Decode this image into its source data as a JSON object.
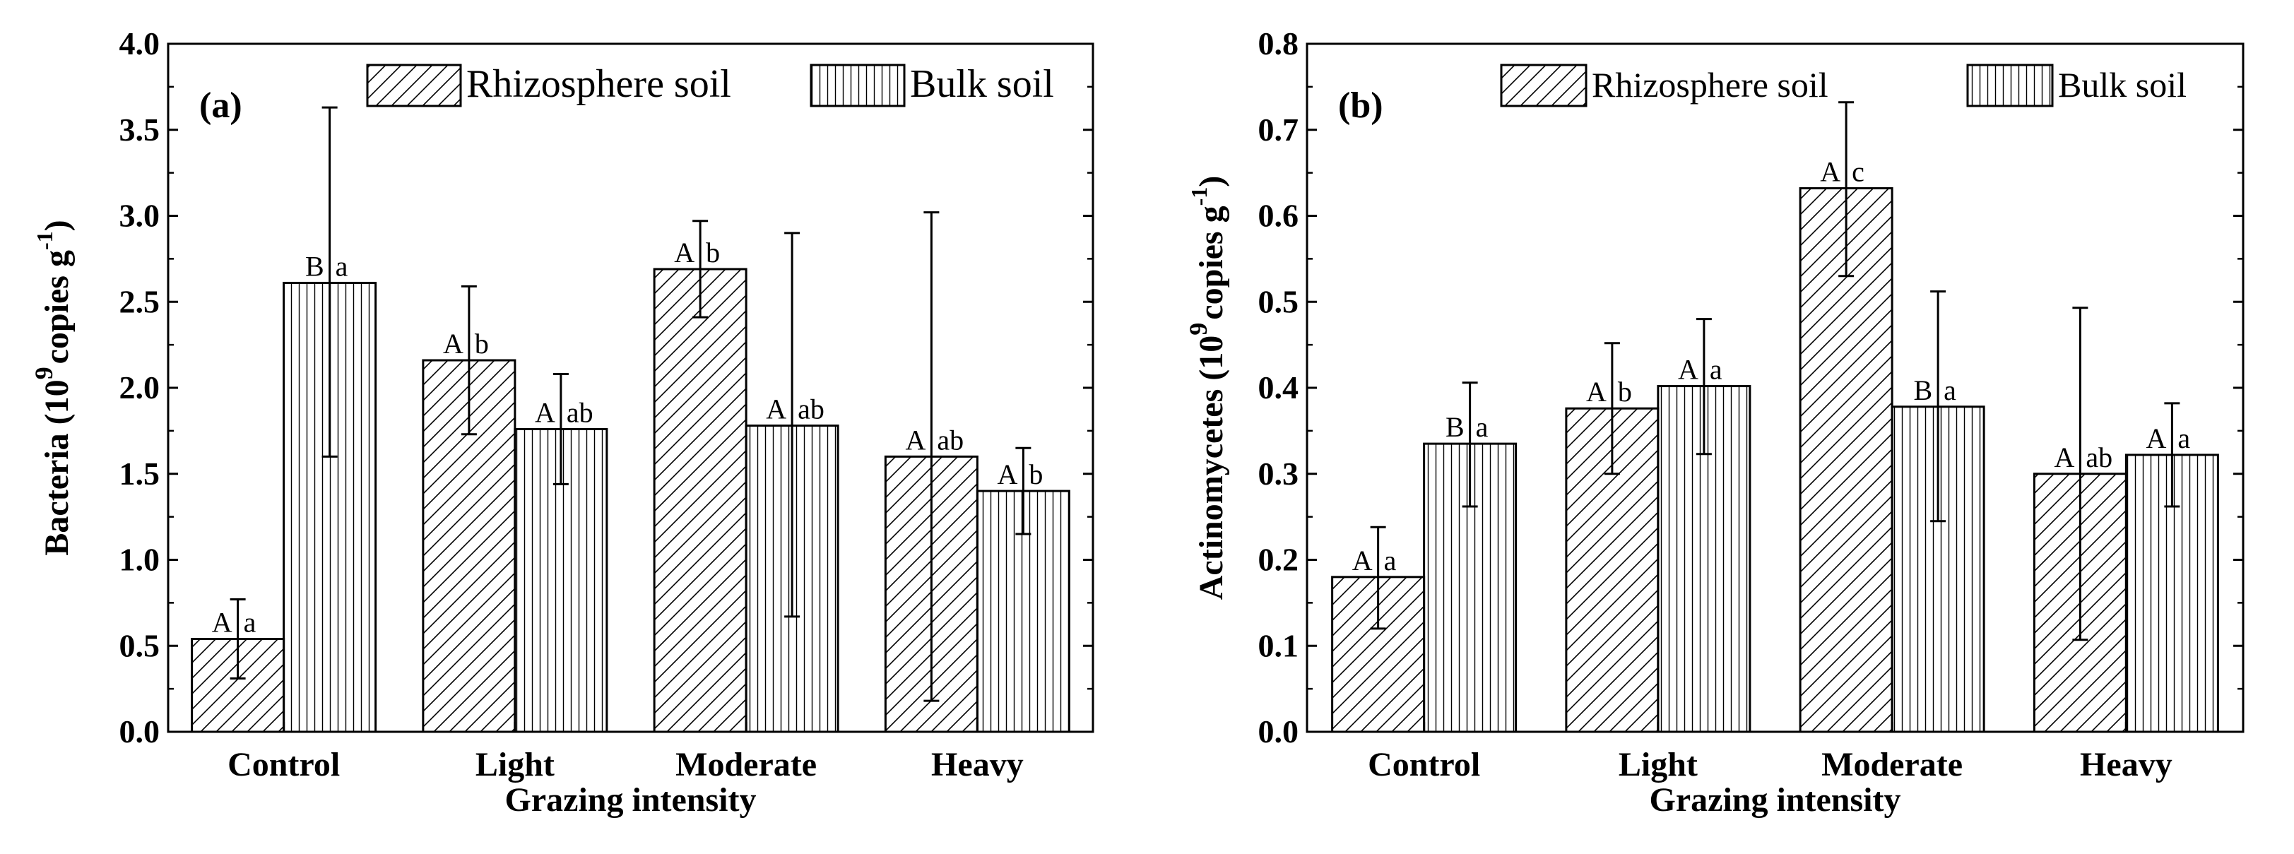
{
  "chart_data": [
    {
      "type": "bar",
      "panel_label": "(a)",
      "categories": [
        "Control",
        "Light",
        "Moderate",
        "Heavy"
      ],
      "xlabel": "Grazing intensity",
      "ylabel_parts": {
        "main": "Bacteria (10",
        "sup1": "9",
        "mid": "copies g",
        "sup2": "-1",
        "end": ")"
      },
      "ylim": [
        0,
        4.0
      ],
      "yticks": [
        "0.0",
        "0.5",
        "1.0",
        "1.5",
        "2.0",
        "2.5",
        "3.0",
        "3.5",
        "4.0"
      ],
      "legend_position": "top-right",
      "series": [
        {
          "name": "Rhizosphere soil",
          "pattern": "diagonal",
          "values": [
            0.54,
            2.16,
            2.69,
            1.6
          ],
          "err_low": [
            0.31,
            1.73,
            2.41,
            0.18
          ],
          "err_high": [
            0.77,
            2.59,
            2.97,
            3.02
          ],
          "labels": [
            [
              "A",
              "a"
            ],
            [
              "A",
              "b"
            ],
            [
              "A",
              "b"
            ],
            [
              "A",
              "ab"
            ]
          ]
        },
        {
          "name": "Bulk soil",
          "pattern": "vertical",
          "values": [
            2.61,
            1.76,
            1.78,
            1.4
          ],
          "err_low": [
            1.6,
            1.44,
            0.67,
            1.15
          ],
          "err_high": [
            3.63,
            2.08,
            2.9,
            1.65
          ],
          "labels": [
            [
              "B",
              "a"
            ],
            [
              "A",
              "ab"
            ],
            [
              "A",
              "ab"
            ],
            [
              "A",
              "b"
            ]
          ]
        }
      ]
    },
    {
      "type": "bar",
      "panel_label": "(b)",
      "categories": [
        "Control",
        "Light",
        "Moderate",
        "Heavy"
      ],
      "xlabel": "Grazing intensity",
      "ylabel_parts": {
        "main": "Actinomycetes (10",
        "sup1": "9",
        "mid": "copies g",
        "sup2": "-1",
        "end": ")"
      },
      "ylim": [
        0,
        0.8
      ],
      "yticks": [
        "0.0",
        "0.1",
        "0.2",
        "0.3",
        "0.4",
        "0.5",
        "0.6",
        "0.7",
        "0.8"
      ],
      "legend_position": "top-right",
      "series": [
        {
          "name": "Rhizosphere soil",
          "pattern": "diagonal",
          "values": [
            0.18,
            0.376,
            0.632,
            0.3
          ],
          "err_low": [
            0.12,
            0.3,
            0.53,
            0.107
          ],
          "err_high": [
            0.238,
            0.452,
            0.732,
            0.493
          ],
          "labels": [
            [
              "A",
              "a"
            ],
            [
              "A",
              "b"
            ],
            [
              "A",
              "c"
            ],
            [
              "A",
              "ab"
            ]
          ]
        },
        {
          "name": "Bulk soil",
          "pattern": "vertical",
          "values": [
            0.335,
            0.402,
            0.378,
            0.322
          ],
          "err_low": [
            0.262,
            0.323,
            0.245,
            0.262
          ],
          "err_high": [
            0.406,
            0.48,
            0.512,
            0.382
          ],
          "labels": [
            [
              "B",
              "a"
            ],
            [
              "A",
              "a"
            ],
            [
              "B",
              "a"
            ],
            [
              "A",
              "a"
            ]
          ]
        }
      ]
    }
  ]
}
